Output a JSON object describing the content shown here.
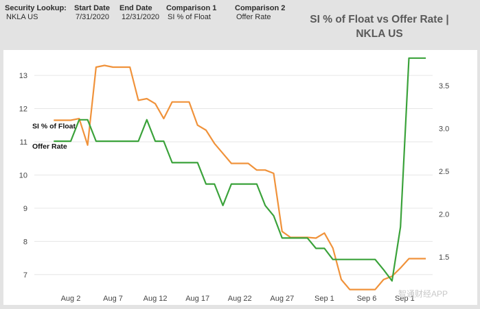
{
  "header": {
    "security_lookup": {
      "label": "Security Lookup:",
      "value": "NKLA US"
    },
    "start_date": {
      "label": "Start Date",
      "value": "7/31/2020"
    },
    "end_date": {
      "label": "End Date",
      "value": "12/31/2020"
    },
    "comparison1": {
      "label": "Comparison 1",
      "value": "SI % of Float"
    },
    "comparison2": {
      "label": "Comparison 2",
      "value": "Offer Rate"
    },
    "title_line1": "SI % of Float vs Offer Rate |",
    "title_line2": "NKLA US"
  },
  "watermark": "智通财经APP",
  "colors": {
    "si_float": "#f0923a",
    "offer_rate": "#3aa23a",
    "grid": "#e6e6e6",
    "axis_text": "#444444"
  },
  "chart_data": {
    "type": "line",
    "title": "SI % of Float vs Offer Rate | NKLA US",
    "x_unit": "days since Jul 31, 2020",
    "x_ticks": [
      {
        "value": 2,
        "label": "Aug 2"
      },
      {
        "value": 7,
        "label": "Aug 7"
      },
      {
        "value": 12,
        "label": "Aug 12"
      },
      {
        "value": 17,
        "label": "Aug 17"
      },
      {
        "value": 22,
        "label": "Aug 22"
      },
      {
        "value": 27,
        "label": "Aug 27"
      },
      {
        "value": 32,
        "label": "Sep 1"
      },
      {
        "value": 37,
        "label": "Sep 6"
      },
      {
        "value": 41.5,
        "label": "Sep 1"
      }
    ],
    "xlim": [
      -2.3,
      44.8
    ],
    "y_left": {
      "ylim": [
        6.5,
        13.6
      ],
      "ticks": [
        7,
        8,
        9,
        10,
        11,
        12,
        13
      ]
    },
    "y_right": {
      "ylim": [
        1.1,
        3.85
      ],
      "ticks": [
        1.5,
        2.0,
        2.5,
        3.0,
        3.5
      ],
      "tick_labels": [
        "1.5",
        "2.0",
        "2.5",
        "3.0",
        "3.5"
      ]
    },
    "grid": "horizontal",
    "series": [
      {
        "name": "SI % of Float",
        "axis": "left",
        "color": "#f0923a",
        "x": [
          0,
          1,
          2,
          3,
          4,
          5,
          6,
          7,
          8,
          9,
          10,
          11,
          12,
          13,
          14,
          15,
          16,
          17,
          18,
          19,
          20,
          21,
          22,
          23,
          24,
          25,
          26,
          27,
          28,
          29,
          30,
          31,
          32,
          33,
          34,
          35,
          36,
          37,
          38,
          39,
          40,
          41,
          42,
          43,
          44
        ],
        "values": [
          11.65,
          11.65,
          11.65,
          11.7,
          10.9,
          13.25,
          13.3,
          13.25,
          13.25,
          13.25,
          12.25,
          12.3,
          12.15,
          11.7,
          12.2,
          12.2,
          12.2,
          11.5,
          11.35,
          10.95,
          10.65,
          10.35,
          10.35,
          10.35,
          10.15,
          10.15,
          10.05,
          8.3,
          8.12,
          8.12,
          8.12,
          8.1,
          8.25,
          7.8,
          6.85,
          6.55,
          6.55,
          6.55,
          6.55,
          6.85,
          6.95,
          7.2,
          7.48,
          7.48,
          7.48
        ]
      },
      {
        "name": "Offer Rate",
        "axis": "right",
        "color": "#3aa23a",
        "x": [
          0,
          1,
          2,
          3,
          4,
          5,
          6,
          7,
          8,
          9,
          10,
          11,
          12,
          13,
          14,
          15,
          16,
          17,
          18,
          19,
          20,
          21,
          22,
          23,
          24,
          25,
          26,
          27,
          28,
          29,
          30,
          31,
          32,
          33,
          34,
          35,
          36,
          37,
          38,
          39,
          40,
          41,
          42,
          43,
          44
        ],
        "values": [
          2.85,
          2.85,
          2.85,
          3.1,
          3.1,
          2.85,
          2.85,
          2.85,
          2.85,
          2.85,
          2.85,
          3.1,
          2.85,
          2.85,
          2.6,
          2.6,
          2.6,
          2.6,
          2.35,
          2.35,
          2.1,
          2.35,
          2.35,
          2.35,
          2.35,
          2.1,
          1.98,
          1.72,
          1.72,
          1.72,
          1.72,
          1.6,
          1.6,
          1.47,
          1.47,
          1.47,
          1.47,
          1.47,
          1.47,
          1.35,
          1.22,
          1.85,
          3.82,
          3.82,
          3.82
        ]
      }
    ],
    "inline_labels": [
      {
        "text": "SI % of Float",
        "series": "SI % of Float"
      },
      {
        "text": "Offer Rate",
        "series": "Offer Rate"
      }
    ]
  }
}
